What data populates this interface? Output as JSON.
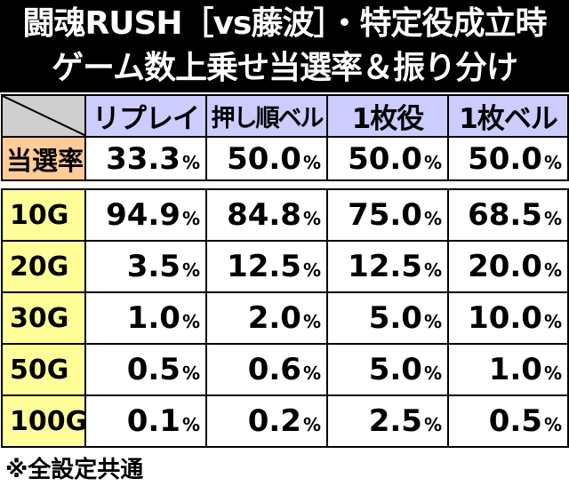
{
  "title": {
    "line1": "闘魂RUSH［vs藤波］・特定役成立時",
    "line2": "ゲーム数上乗せ当選率＆振り分け"
  },
  "columns": [
    "リプレイ",
    "押し順ベル",
    "1枚役",
    "1枚ベル"
  ],
  "hit_rate": {
    "label": "当選率",
    "values": [
      "33.3",
      "50.0",
      "50.0",
      "50.0"
    ]
  },
  "percent_sign": "%",
  "rows": [
    {
      "label": "10G",
      "values": [
        "94.9",
        "84.8",
        "75.0",
        "68.5"
      ]
    },
    {
      "label": "20G",
      "values": [
        "3.5",
        "12.5",
        "12.5",
        "20.0"
      ]
    },
    {
      "label": "30G",
      "values": [
        "1.0",
        "2.0",
        "5.0",
        "10.0"
      ]
    },
    {
      "label": "50G",
      "values": [
        "0.5",
        "0.6",
        "5.0",
        "1.0"
      ]
    },
    {
      "label": "100G",
      "values": [
        "0.1",
        "0.2",
        "2.5",
        "0.5"
      ]
    }
  ],
  "footnote": "※全設定共通"
}
